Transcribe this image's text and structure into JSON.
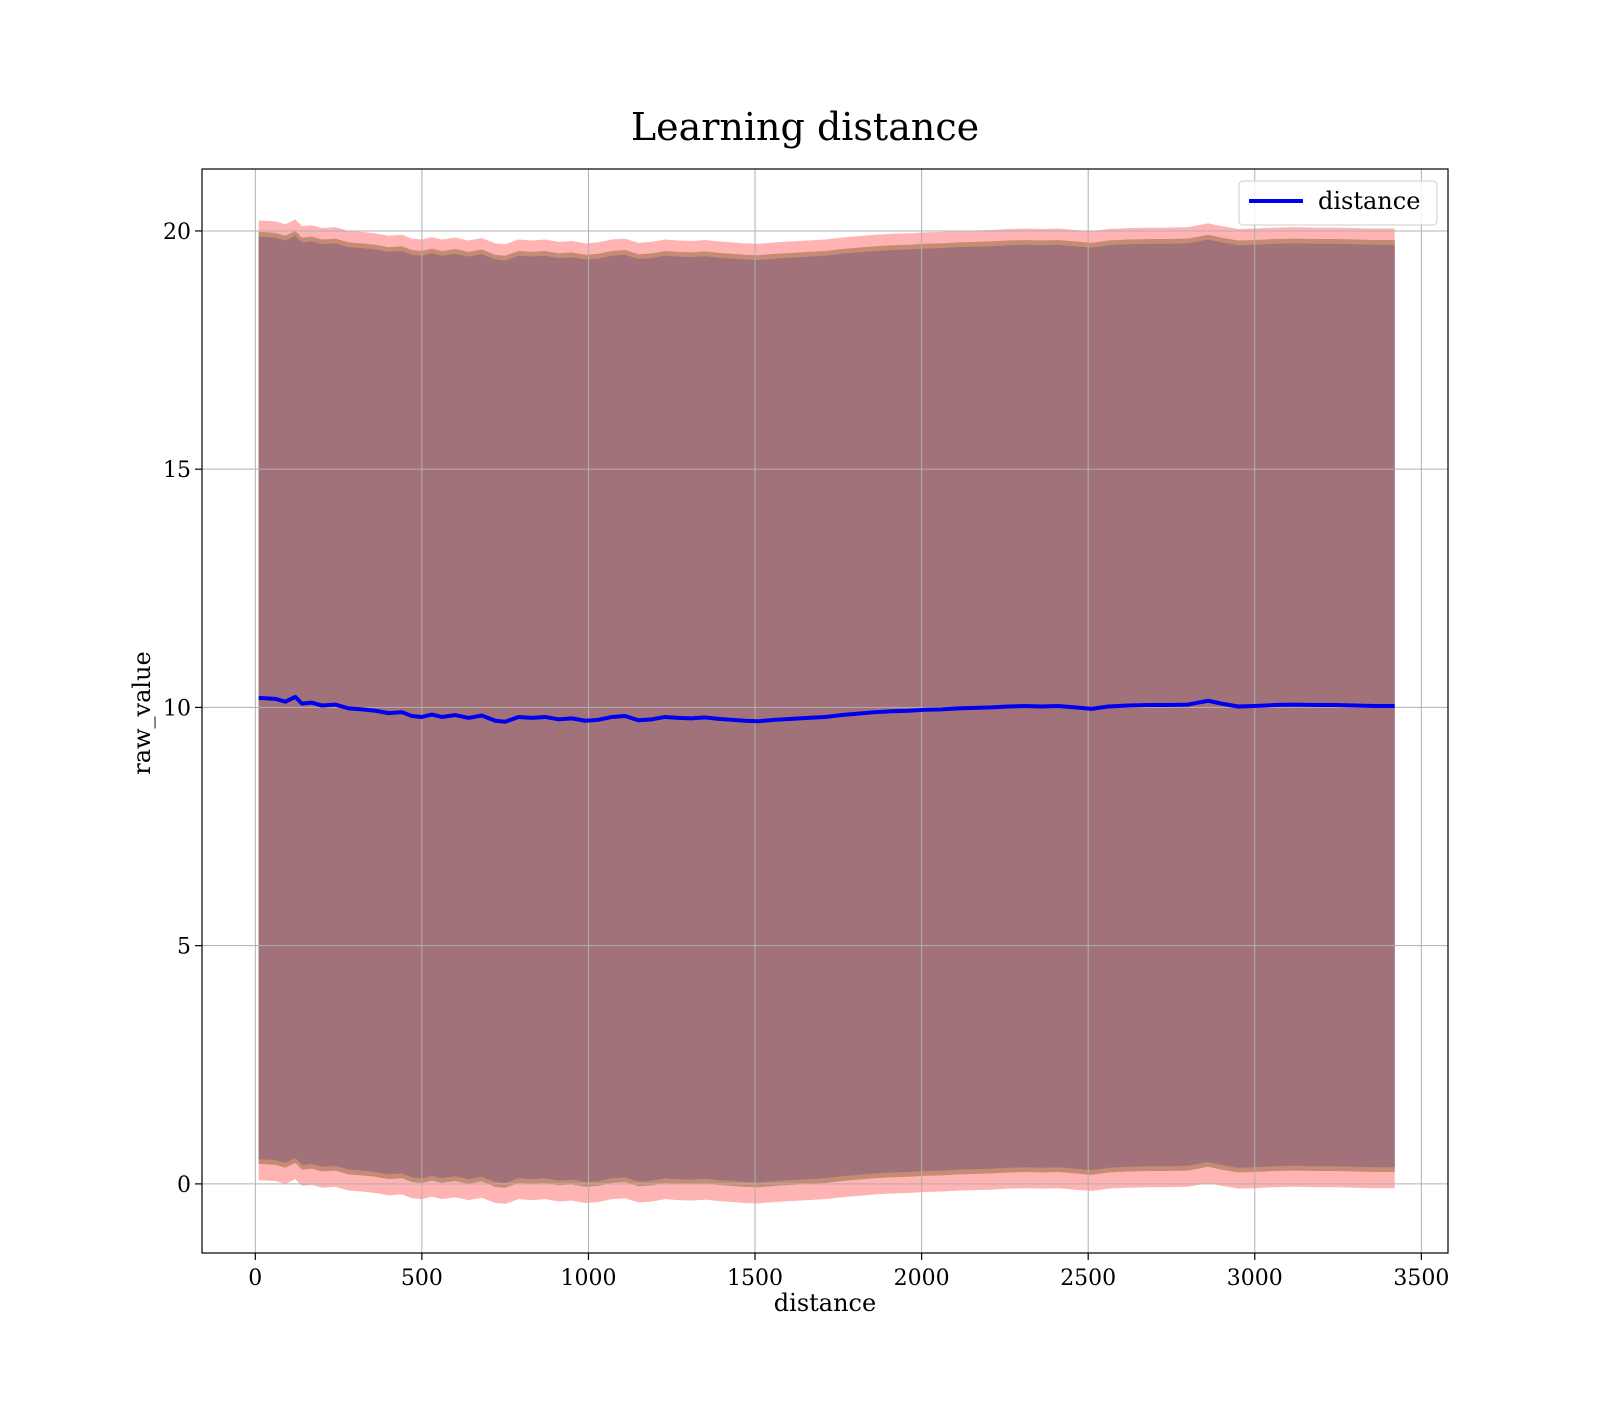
{
  "chart_data": {
    "type": "area",
    "title": "Learning distance",
    "xlabel": "distance",
    "ylabel": "raw_value",
    "xlim": [
      -160,
      3580
    ],
    "ylim": [
      -1.45,
      21.3
    ],
    "xticks": [
      0,
      500,
      1000,
      1500,
      2000,
      2500,
      3000,
      3500
    ],
    "yticks": [
      0,
      5,
      10,
      15,
      20
    ],
    "grid": true,
    "legend": {
      "position": "top-right",
      "entries": [
        "distance"
      ]
    },
    "colors": {
      "mean_line": "#0000ee",
      "outer_band": "#ffb3b3",
      "middle_band": "#c58c73",
      "inner_band": "#a17279",
      "grid": "#b0b0b0"
    },
    "series": [
      {
        "name": "distance",
        "x": [
          10,
          60,
          90,
          120,
          140,
          170,
          200,
          240,
          280,
          320,
          360,
          400,
          440,
          470,
          500,
          530,
          560,
          600,
          640,
          680,
          720,
          750,
          790,
          830,
          870,
          910,
          950,
          990,
          1030,
          1070,
          1110,
          1150,
          1190,
          1230,
          1270,
          1310,
          1350,
          1390,
          1430,
          1470,
          1510,
          1560,
          1610,
          1660,
          1710,
          1760,
          1810,
          1860,
          1910,
          1960,
          2010,
          2060,
          2110,
          2160,
          2210,
          2260,
          2310,
          2360,
          2410,
          2460,
          2510,
          2560,
          2620,
          2680,
          2740,
          2800,
          2860,
          2900,
          2950,
          3000,
          3060,
          3120,
          3180,
          3240,
          3300,
          3360,
          3420
        ],
        "values": [
          10.2,
          10.18,
          10.12,
          10.22,
          10.08,
          10.1,
          10.04,
          10.06,
          9.98,
          9.96,
          9.93,
          9.88,
          9.9,
          9.82,
          9.8,
          9.85,
          9.8,
          9.84,
          9.78,
          9.83,
          9.72,
          9.7,
          9.8,
          9.78,
          9.8,
          9.75,
          9.77,
          9.72,
          9.74,
          9.8,
          9.82,
          9.73,
          9.75,
          9.8,
          9.78,
          9.77,
          9.79,
          9.76,
          9.74,
          9.72,
          9.71,
          9.74,
          9.76,
          9.78,
          9.8,
          9.84,
          9.87,
          9.9,
          9.92,
          9.93,
          9.95,
          9.96,
          9.98,
          9.99,
          10.0,
          10.02,
          10.03,
          10.02,
          10.03,
          10.0,
          9.97,
          10.02,
          10.04,
          10.05,
          10.05,
          10.06,
          10.14,
          10.08,
          10.02,
          10.03,
          10.05,
          10.06,
          10.05,
          10.05,
          10.04,
          10.03,
          10.03
        ]
      }
    ],
    "bands": {
      "outer_offset_upper": 10.02,
      "outer_offset_lower": 10.12,
      "middle_offset": 9.78,
      "inner_offset": 9.68
    }
  }
}
